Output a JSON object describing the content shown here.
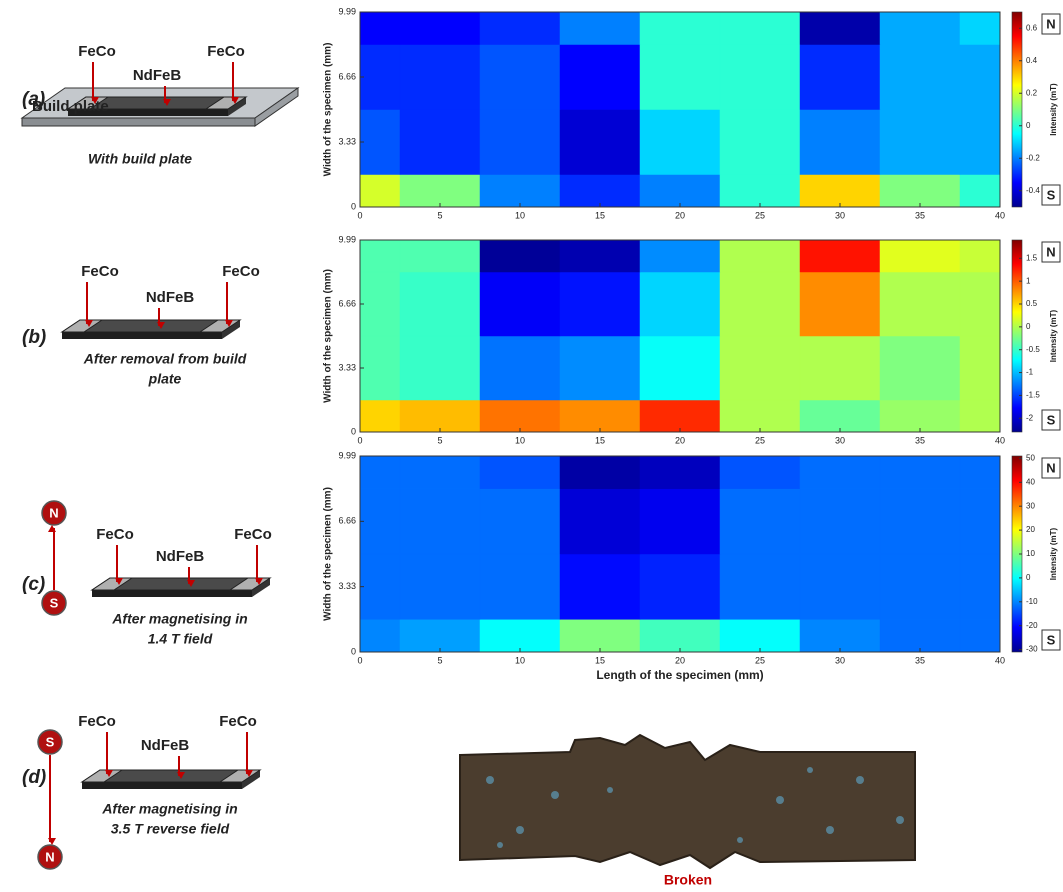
{
  "diagrams": [
    {
      "label": "(a)",
      "left": "FeCo",
      "middle": "NdFeB",
      "right": "FeCo",
      "plate": "Build plate",
      "caption": [
        "With build plate"
      ]
    },
    {
      "label": "(b)",
      "left": "FeCo",
      "middle": "NdFeB",
      "right": "FeCo",
      "caption": [
        "After removal from build",
        "plate"
      ]
    },
    {
      "label": "(c)",
      "left": "FeCo",
      "middle": "NdFeB",
      "right": "FeCo",
      "pole_top": "N",
      "pole_bottom": "S",
      "caption": [
        "After magnetising  in",
        "1.4 T field"
      ]
    },
    {
      "label": "(d)",
      "left": "FeCo",
      "middle": "NdFeB",
      "right": "FeCo",
      "pole_top": "S",
      "pole_bottom": "N",
      "caption": [
        "After magnetising  in",
        "3.5 T reverse field"
      ]
    }
  ],
  "photo_caption": "Broken",
  "chart_data": [
    {
      "type": "contour",
      "ylabel": "Width of the specimen (mm)",
      "zlabel": "Intensity (mT)",
      "top_pole": "N",
      "bottom_pole": "S",
      "x": [
        0,
        5,
        10,
        15,
        20,
        25,
        30,
        35,
        40
      ],
      "y": [
        0,
        3.33,
        6.66,
        9.99
      ],
      "z": [
        [
          0.2,
          0.1,
          -0.2,
          -0.3,
          -0.2,
          0,
          0.3,
          0.1,
          0
        ],
        [
          -0.25,
          -0.3,
          -0.25,
          -0.4,
          -0.1,
          0,
          -0.2,
          -0.15,
          -0.15
        ],
        [
          -0.3,
          -0.3,
          -0.25,
          -0.35,
          0,
          0,
          -0.3,
          -0.15,
          -0.15
        ],
        [
          -0.35,
          -0.35,
          -0.3,
          -0.2,
          0,
          0,
          -0.45,
          -0.15,
          -0.1
        ]
      ],
      "xlim": [
        0,
        40
      ],
      "xticks": [
        0,
        5,
        10,
        15,
        20,
        25,
        30,
        35,
        40
      ],
      "ylim": [
        0,
        9.99
      ],
      "yticks": [
        0,
        3.33,
        6.66,
        9.99
      ],
      "zlim": [
        -0.5,
        0.7
      ],
      "zticks": [
        -0.4,
        -0.2,
        0,
        0.2,
        0.4,
        0.6
      ]
    },
    {
      "type": "contour",
      "ylabel": "Width of the specimen (mm)",
      "zlabel": "Intensity (mT)",
      "top_pole": "N",
      "bottom_pole": "S",
      "x": [
        0,
        5,
        10,
        15,
        20,
        25,
        30,
        35,
        40
      ],
      "y": [
        0,
        3.33,
        6.66,
        9.99
      ],
      "z": [
        [
          0.5,
          0.6,
          0.9,
          0.8,
          1.2,
          0,
          -0.3,
          -0.1,
          0
        ],
        [
          -0.4,
          -0.5,
          -1.3,
          -1.2,
          -0.7,
          0,
          0,
          -0.2,
          0
        ],
        [
          -0.4,
          -0.5,
          -1.8,
          -1.7,
          -0.9,
          0,
          0.8,
          0,
          0
        ],
        [
          -0.4,
          -0.4,
          -2.2,
          -2.1,
          -1.2,
          0,
          1.3,
          0.2,
          0.1
        ]
      ],
      "xlim": [
        0,
        40
      ],
      "xticks": [
        0,
        5,
        10,
        15,
        20,
        25,
        30,
        35,
        40
      ],
      "ylim": [
        0,
        9.99
      ],
      "yticks": [
        0,
        3.33,
        6.66,
        9.99
      ],
      "zlim": [
        -2.3,
        1.9
      ],
      "zticks": [
        -2,
        -1.5,
        -1,
        -0.5,
        0,
        0.5,
        1,
        1.5
      ]
    },
    {
      "type": "contour",
      "xlabel": "Length of the specimen (mm)",
      "ylabel": "Width of the specimen (mm)",
      "zlabel": "Intensity (mT)",
      "top_pole": "N",
      "bottom_pole": "S",
      "x": [
        0,
        5,
        10,
        15,
        20,
        25,
        30,
        35,
        40
      ],
      "y": [
        0,
        3.33,
        6.66,
        9.99
      ],
      "z": [
        [
          -10,
          -8,
          0,
          10,
          5,
          0,
          -10,
          -12,
          -12
        ],
        [
          -12,
          -12,
          -12,
          -20,
          -18,
          -12,
          -12,
          -12,
          -12
        ],
        [
          -12,
          -12,
          -12,
          -24,
          -22,
          -12,
          -12,
          -12,
          -12
        ],
        [
          -12,
          -12,
          -14,
          -28,
          -26,
          -14,
          -12,
          -12,
          -12
        ]
      ],
      "xlim": [
        0,
        40
      ],
      "xticks": [
        0,
        5,
        10,
        15,
        20,
        25,
        30,
        35,
        40
      ],
      "ylim": [
        0,
        9.99
      ],
      "yticks": [
        0,
        3.33,
        6.66,
        9.99
      ],
      "zlim": [
        -31,
        51
      ],
      "zticks": [
        -30,
        -20,
        -10,
        0,
        10,
        20,
        30,
        40,
        50
      ]
    }
  ]
}
